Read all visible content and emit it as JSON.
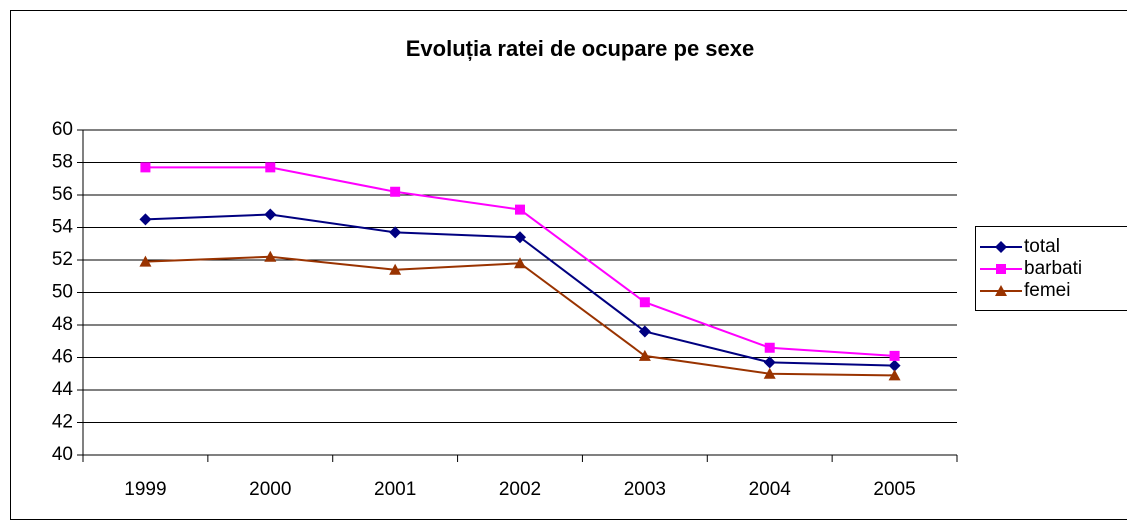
{
  "chart_data": {
    "type": "line",
    "title": "Evoluția ratei de ocupare pe sexe",
    "categories": [
      "1999",
      "2000",
      "2001",
      "2002",
      "2003",
      "2004",
      "2005"
    ],
    "series": [
      {
        "name": "total",
        "color": "#000080",
        "marker": "diamond",
        "values": [
          54.5,
          54.8,
          53.7,
          53.4,
          47.6,
          45.7,
          45.5
        ]
      },
      {
        "name": "barbati",
        "color": "#ff00ff",
        "marker": "square",
        "values": [
          57.7,
          57.7,
          56.2,
          55.1,
          49.4,
          46.6,
          46.1
        ]
      },
      {
        "name": "femei",
        "color": "#993300",
        "marker": "triangle",
        "values": [
          51.9,
          52.2,
          51.4,
          51.8,
          46.1,
          45.0,
          44.9
        ]
      }
    ],
    "ylim": [
      40,
      60
    ],
    "yticks": [
      40,
      42,
      44,
      46,
      48,
      50,
      52,
      54,
      56,
      58,
      60
    ],
    "grid": true,
    "legend": "right"
  }
}
